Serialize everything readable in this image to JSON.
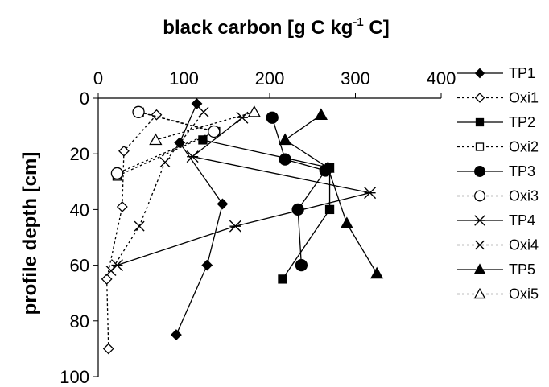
{
  "chart_data": {
    "type": "line",
    "title": "",
    "xlabel": {
      "main": "black carbon [g C kg",
      "sup": "-1",
      "tail": " C]"
    },
    "ylabel": "profile depth [cm]",
    "xlim": [
      0,
      400
    ],
    "ylim": [
      0,
      100
    ],
    "x_ticks": [
      "0",
      "100",
      "200",
      "300",
      "400"
    ],
    "y_ticks": [
      "0",
      "20",
      "40",
      "60",
      "80",
      "100"
    ],
    "x_axis_position": "top",
    "y_inverted": true,
    "grid": false,
    "legend_position": "right",
    "series": [
      {
        "name": "TP1",
        "marker": "diamond",
        "filled": true,
        "dashed": false,
        "points": [
          [
            115,
            2
          ],
          [
            95,
            16
          ],
          [
            145,
            38
          ],
          [
            127,
            60
          ],
          [
            91,
            85
          ]
        ]
      },
      {
        "name": "Oxi1",
        "marker": "diamond",
        "filled": false,
        "dashed": true,
        "points": [
          [
            68,
            6
          ],
          [
            30,
            19
          ],
          [
            28,
            39
          ],
          [
            10,
            65
          ],
          [
            12,
            90
          ]
        ]
      },
      {
        "name": "TP2",
        "marker": "square",
        "filled": true,
        "dashed": false,
        "points": [
          [
            122,
            15
          ],
          [
            270,
            25
          ],
          [
            270,
            40
          ],
          [
            215,
            65
          ]
        ]
      },
      {
        "name": "Oxi2",
        "marker": "square",
        "filled": false,
        "dashed": true,
        "points": [
          [
            48,
            5
          ],
          [
            137,
            12
          ],
          [
            22,
            28
          ]
        ]
      },
      {
        "name": "TP3",
        "marker": "circle",
        "filled": true,
        "dashed": false,
        "points": [
          [
            203,
            7
          ],
          [
            218,
            22
          ],
          [
            265,
            26
          ],
          [
            233,
            40
          ],
          [
            237,
            60
          ]
        ]
      },
      {
        "name": "Oxi3",
        "marker": "circle",
        "filled": false,
        "dashed": true,
        "points": [
          [
            47,
            5
          ],
          [
            135,
            12
          ],
          [
            22,
            27
          ]
        ]
      },
      {
        "name": "TP4",
        "marker": "star",
        "filled": true,
        "dashed": false,
        "points": [
          [
            168,
            7
          ],
          [
            110,
            21
          ],
          [
            317,
            34
          ],
          [
            160,
            46
          ],
          [
            22,
            60
          ]
        ]
      },
      {
        "name": "Oxi4",
        "marker": "x",
        "filled": false,
        "dashed": true,
        "points": [
          [
            123,
            5
          ],
          [
            78,
            23
          ],
          [
            48,
            46
          ],
          [
            15,
            62
          ]
        ]
      },
      {
        "name": "TP5",
        "marker": "triangle",
        "filled": true,
        "dashed": false,
        "points": [
          [
            260,
            6
          ],
          [
            218,
            15
          ],
          [
            268,
            25
          ],
          [
            290,
            45
          ],
          [
            325,
            63
          ]
        ]
      },
      {
        "name": "Oxi5",
        "marker": "triangle",
        "filled": false,
        "dashed": true,
        "points": [
          [
            182,
            5
          ],
          [
            67,
            15
          ]
        ]
      }
    ]
  }
}
